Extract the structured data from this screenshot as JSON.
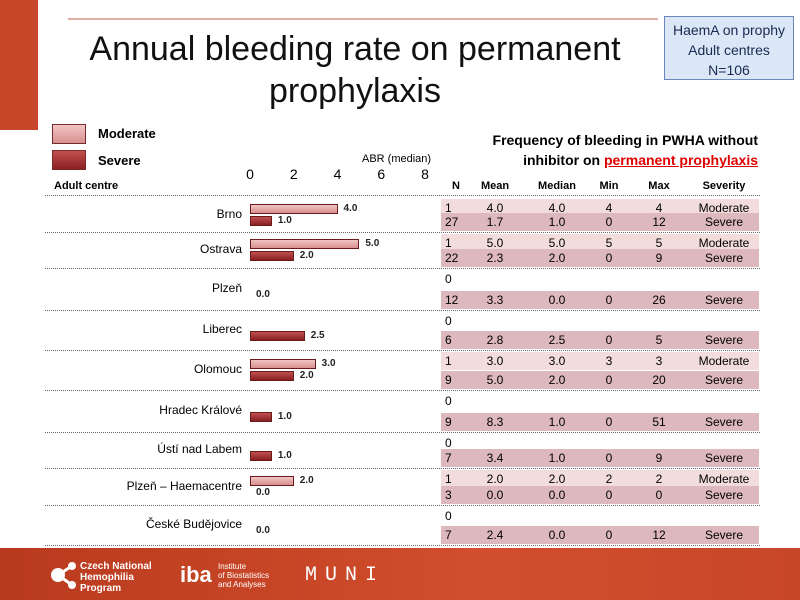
{
  "title": "Annual bleeding rate on permanent prophylaxis",
  "badge": {
    "line1": "HaemA on prophy",
    "line2": "Adult centres",
    "line3": "N=106"
  },
  "legend": {
    "moderate": "Moderate",
    "severe": "Severe"
  },
  "colors": {
    "moderate": "#e8a8a8",
    "severe": "#a83434",
    "accent_red": "#e00000",
    "footer": "#c8462a"
  },
  "chart_data": {
    "type": "bar",
    "orientation": "horizontal",
    "ylabel": "Adult centre",
    "xlabel": "ABR (median)",
    "xlim": [
      0,
      8
    ],
    "ticks": [
      "0",
      "2",
      "4",
      "6",
      "8"
    ],
    "categories": [
      "Brno",
      "Ostrava",
      "Plzeň",
      "Liberec",
      "Olomouc",
      "Hradec Králové",
      "Ústí nad Labem",
      "Plzeň – Haemacentre",
      "České Budějovice"
    ],
    "series": [
      {
        "name": "Moderate",
        "values": [
          4.0,
          5.0,
          null,
          null,
          3.0,
          null,
          null,
          2.0,
          null
        ],
        "labels": [
          "4.0",
          "5.0",
          "",
          "",
          "3.0",
          "",
          "",
          "2.0",
          ""
        ]
      },
      {
        "name": "Severe",
        "values": [
          1.0,
          2.0,
          0.0,
          2.5,
          2.0,
          1.0,
          1.0,
          0.0,
          0.0
        ],
        "labels": [
          "1.0",
          "2.0",
          "0.0",
          "2.5",
          "2.0",
          "1.0",
          "1.0",
          "0.0",
          "0.0"
        ]
      }
    ]
  },
  "table": {
    "title_a": "Frequency of bleeding in PWHA without",
    "title_b": "inhibitor on ",
    "title_hl": "permanent prophylaxis",
    "headers": [
      "N",
      "Mean",
      "Median",
      "Min",
      "Max",
      "Severity"
    ],
    "groups": [
      [
        [
          "1",
          "4.0",
          "4.0",
          "4",
          "4",
          "Moderate"
        ],
        [
          "27",
          "1.7",
          "1.0",
          "0",
          "12",
          "Severe"
        ]
      ],
      [
        [
          "1",
          "5.0",
          "5.0",
          "5",
          "5",
          "Moderate"
        ],
        [
          "22",
          "2.3",
          "2.0",
          "0",
          "9",
          "Severe"
        ]
      ],
      [
        [
          "0",
          "",
          "",
          "",
          "",
          ""
        ],
        [
          "12",
          "3.3",
          "0.0",
          "0",
          "26",
          "Severe"
        ]
      ],
      [
        [
          "0",
          "",
          "",
          "",
          "",
          ""
        ],
        [
          "6",
          "2.8",
          "2.5",
          "0",
          "5",
          "Severe"
        ]
      ],
      [
        [
          "1",
          "3.0",
          "3.0",
          "3",
          "3",
          "Moderate"
        ],
        [
          "9",
          "5.0",
          "2.0",
          "0",
          "20",
          "Severe"
        ]
      ],
      [
        [
          "0",
          "",
          "",
          "",
          "",
          ""
        ],
        [
          "9",
          "8.3",
          "1.0",
          "0",
          "51",
          "Severe"
        ]
      ],
      [
        [
          "0",
          "",
          "",
          "",
          "",
          ""
        ],
        [
          "7",
          "3.4",
          "1.0",
          "0",
          "9",
          "Severe"
        ]
      ],
      [
        [
          "1",
          "2.0",
          "2.0",
          "2",
          "2",
          "Moderate"
        ],
        [
          "3",
          "0.0",
          "0.0",
          "0",
          "0",
          "Severe"
        ]
      ],
      [
        [
          "0",
          "",
          "",
          "",
          "",
          ""
        ],
        [
          "7",
          "2.4",
          "0.0",
          "0",
          "12",
          "Severe"
        ]
      ]
    ]
  },
  "footer": {
    "cnhp": [
      "Czech National",
      "Hemophilia",
      "Program"
    ],
    "iba_mark": "iba",
    "iba": [
      "Institute",
      "of Biostatistics",
      "and Analyses"
    ],
    "muni": "MUNI"
  }
}
